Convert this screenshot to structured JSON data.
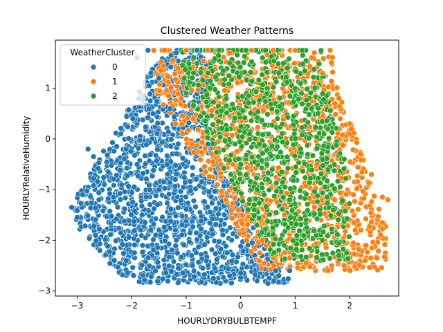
{
  "chart_data": {
    "type": "scatter",
    "title": "Clustered Weather Patterns",
    "xlabel": "HOURLYDRYBULBTEMPF",
    "ylabel": "HOURLYRelativeHumidity",
    "xlim": [
      -3.4,
      2.9
    ],
    "ylim": [
      -3.1,
      1.95
    ],
    "xticks": [
      -3,
      -2,
      -1,
      0,
      1,
      2
    ],
    "yticks": [
      -3,
      -2,
      -1,
      0,
      1
    ],
    "grid": false,
    "legend": {
      "title": "WeatherCluster",
      "placement": "top-left"
    },
    "series": [
      {
        "name": "0",
        "color": "#1f77b4",
        "cloud": {
          "xmin": -3.1,
          "xmax": 0.9,
          "ymin": -2.85,
          "ymax": 1.75,
          "count": 1600
        },
        "x": [
          -3.1,
          -3.0,
          -2.9,
          -2.7,
          -2.5,
          -2.3,
          -2.1,
          -1.9,
          -1.7,
          -1.5,
          -1.3,
          -1.0,
          -0.8,
          -0.5,
          -0.2,
          0.0,
          0.3,
          0.5,
          0.7,
          0.9,
          -2.2,
          -1.9,
          -1.5,
          -1.2,
          -0.9,
          -0.6,
          -0.3,
          -2.6,
          -2.8,
          -1.8
        ],
        "y": [
          -1.35,
          -1.55,
          -1.1,
          -0.35,
          -0.9,
          0.8,
          -2.4,
          1.6,
          1.75,
          1.2,
          0.6,
          0.9,
          1.75,
          -2.75,
          -2.7,
          -2.65,
          -2.8,
          -2.85,
          -2.7,
          -2.6,
          0.1,
          -0.5,
          -1.0,
          -1.8,
          -2.3,
          -0.1,
          -1.5,
          -1.2,
          -0.2,
          -2.1
        ]
      },
      {
        "name": "1",
        "color": "#ff7f0e",
        "cloud": {
          "xmin": -1.6,
          "xmax": 2.7,
          "ymin": -2.6,
          "ymax": 1.75,
          "count": 1300
        },
        "x": [
          -1.4,
          -1.0,
          -0.6,
          -0.2,
          0.2,
          0.6,
          1.0,
          1.3,
          1.5,
          1.8,
          2.0,
          2.2,
          2.4,
          2.5,
          2.6,
          2.7,
          1.2,
          0.9,
          1.6,
          1.9,
          2.3,
          0.4,
          0.8,
          1.4,
          2.1
        ],
        "y": [
          1.75,
          1.75,
          1.75,
          1.7,
          1.75,
          1.75,
          1.75,
          1.6,
          1.3,
          0.8,
          0.3,
          -0.3,
          -0.7,
          -2.35,
          -1.15,
          -1.2,
          -2.45,
          -2.35,
          -2.6,
          -2.5,
          -2.1,
          -2.0,
          -1.5,
          -0.5,
          -1.8
        ]
      },
      {
        "name": "2",
        "color": "#2ca02c",
        "cloud": {
          "xmin": -1.1,
          "xmax": 2.0,
          "ymin": -2.4,
          "ymax": 1.75,
          "count": 900
        },
        "x": [
          -1.0,
          -0.6,
          -0.2,
          0.1,
          0.4,
          0.7,
          1.0,
          1.3,
          1.6,
          1.9,
          0.5,
          0.9,
          1.2,
          1.5,
          1.8,
          0.0,
          0.3,
          0.8,
          1.1,
          1.7
        ],
        "y": [
          0.9,
          1.3,
          1.5,
          1.75,
          1.6,
          1.3,
          1.0,
          0.6,
          0.2,
          -0.4,
          -0.8,
          -1.2,
          -1.6,
          -2.0,
          -2.3,
          -0.5,
          -1.0,
          -2.1,
          -0.2,
          -1.4
        ]
      }
    ]
  }
}
